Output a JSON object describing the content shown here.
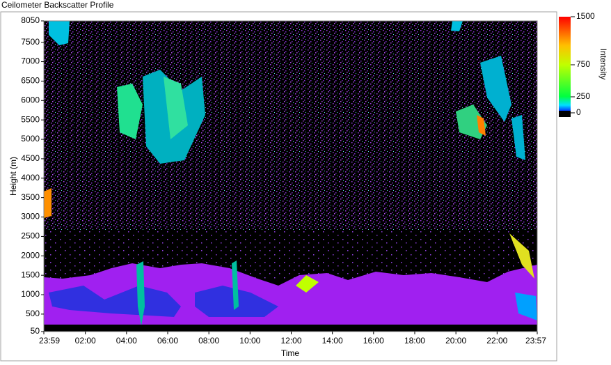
{
  "chart_data": {
    "type": "heatmap",
    "title": "Ceilometer Backscatter Profile",
    "x_label": "Time",
    "y_label": "Height (m)",
    "xlim": [
      -0.0167,
      23.95
    ],
    "xticks": [
      {
        "value": -0.0167,
        "label": "23:59"
      },
      {
        "value": 2,
        "label": "02:00"
      },
      {
        "value": 4,
        "label": "04:00"
      },
      {
        "value": 6,
        "label": "06:00"
      },
      {
        "value": 8,
        "label": "08:00"
      },
      {
        "value": 10,
        "label": "10:00"
      },
      {
        "value": 12,
        "label": "12:00"
      },
      {
        "value": 14,
        "label": "14:00"
      },
      {
        "value": 16,
        "label": "16:00"
      },
      {
        "value": 18,
        "label": "18:00"
      },
      {
        "value": 20,
        "label": "20:00"
      },
      {
        "value": 22,
        "label": "22:00"
      },
      {
        "value": 23.95,
        "label": "23:57"
      }
    ],
    "ylim": [
      50,
      8050
    ],
    "yticks": [
      50,
      500,
      1000,
      1500,
      2000,
      2500,
      3000,
      3500,
      4000,
      4500,
      5000,
      5500,
      6000,
      6500,
      7000,
      7500,
      8050
    ],
    "colorbar_label": "Intensity",
    "clim": [
      0,
      1500
    ],
    "cticks": [
      0,
      250,
      750,
      1500
    ]
  }
}
